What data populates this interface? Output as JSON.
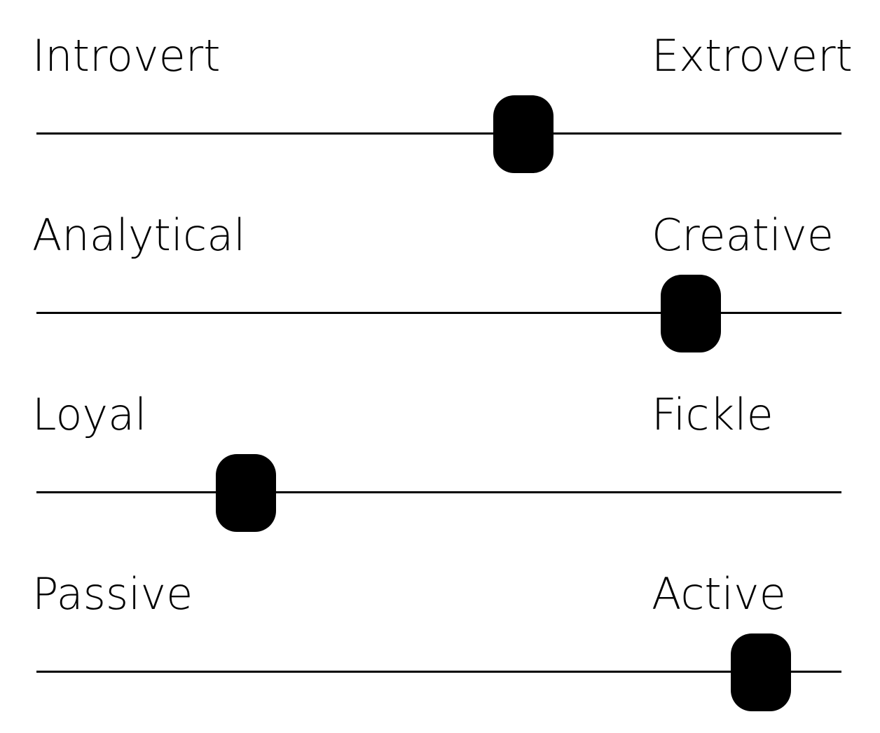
{
  "sliders": [
    {
      "left_label": "Introvert",
      "right_label": "Extrovert",
      "value": 0.605
    },
    {
      "left_label": "Analytical",
      "right_label": "Creative",
      "value": 0.813
    },
    {
      "left_label": "Loyal",
      "right_label": "Fickle",
      "value": 0.26
    },
    {
      "left_label": "Passive",
      "right_label": "Active",
      "value": 0.9
    }
  ]
}
